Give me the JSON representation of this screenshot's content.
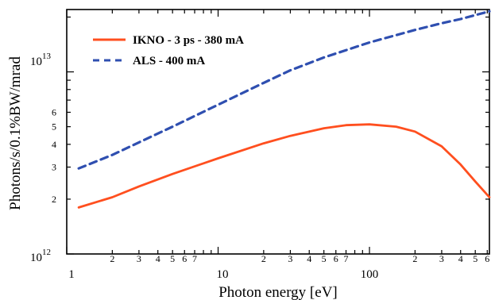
{
  "chart_data": {
    "type": "line",
    "title": "",
    "xlabel": "Photon energy [eV]",
    "ylabel": "Photons/s/0.1%BW/mrad",
    "xscale": "log",
    "yscale": "log",
    "xlim": [
      1,
      620
    ],
    "ylim": [
      1000000000000.0,
      22000000000000.0
    ],
    "grid": false,
    "legend_position": "top-left",
    "x_major_tick_labels": [
      "1",
      "10",
      "100"
    ],
    "x_minor_tick_labels": [
      "2",
      "3",
      "4",
      "5",
      "6",
      "7",
      "2",
      "3",
      "4",
      "5",
      "6",
      "7",
      "2",
      "3",
      "4",
      "5",
      "6"
    ],
    "y_major_tick_labels": [
      {
        "base": "10",
        "exp": "12"
      },
      {
        "base": "10",
        "exp": "13"
      }
    ],
    "y_minor_tick_labels": [
      "2",
      "3",
      "4",
      "5",
      "6"
    ],
    "series": [
      {
        "name": "IKNO - 3 ps - 380 mA",
        "color": "#ff4f1f",
        "dash": "solid",
        "x": [
          1.2,
          2,
          3,
          5,
          10,
          20,
          30,
          50,
          70,
          100,
          150,
          200,
          300,
          400,
          500,
          620
        ],
        "y": [
          1800000000000.0,
          2050000000000.0,
          2350000000000.0,
          2750000000000.0,
          3350000000000.0,
          4050000000000.0,
          4450000000000.0,
          4900000000000.0,
          5100000000000.0,
          5150000000000.0,
          5000000000000.0,
          4700000000000.0,
          3900000000000.0,
          3100000000000.0,
          2500000000000.0,
          2050000000000.0
        ]
      },
      {
        "name": "ALS - 400 mA",
        "color": "#2f4fb0",
        "dash": "dashed",
        "x": [
          1.2,
          2,
          3,
          5,
          10,
          20,
          30,
          50,
          100,
          200,
          300,
          400,
          620
        ],
        "y": [
          2950000000000.0,
          3500000000000.0,
          4100000000000.0,
          5000000000000.0,
          6600000000000.0,
          8700000000000.0,
          10200000000000.0,
          12000000000000.0,
          14500000000000.0,
          17000000000000.0,
          18500000000000.0,
          19500000000000.0,
          21500000000000.0
        ]
      }
    ]
  }
}
